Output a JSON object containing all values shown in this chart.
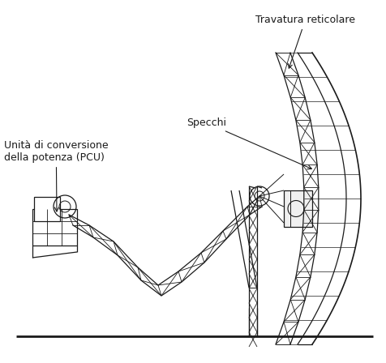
{
  "background_color": "#ffffff",
  "line_color": "#1a1a1a",
  "text_color": "#1a1a1a",
  "labels": {
    "travatura": "Travatura reticolare",
    "specchi": "Specchi",
    "unita": "Unità di conversione\ndella potenza (PCU)"
  },
  "figsize": [
    4.76,
    4.48
  ],
  "dpi": 100
}
